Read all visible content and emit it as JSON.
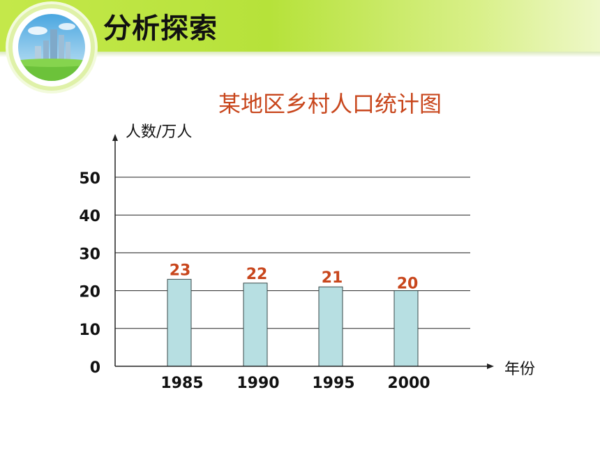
{
  "header": {
    "title": "分析探索"
  },
  "colors": {
    "bar_fill": "#b7dfe2",
    "value_label": "#c8461c",
    "title": "#c8461c",
    "header_band": "#b6e23a"
  },
  "chart_data": {
    "type": "bar",
    "title": "某地区乡村人口统计图",
    "ylabel": "人数/万人",
    "xlabel": "年份",
    "categories": [
      "1985",
      "1990",
      "1995",
      "2000"
    ],
    "values": [
      23,
      22,
      21,
      20
    ],
    "ylim": [
      0,
      50
    ],
    "yticks": [
      "0",
      "10",
      "20",
      "30",
      "40",
      "50"
    ],
    "grid": true
  }
}
